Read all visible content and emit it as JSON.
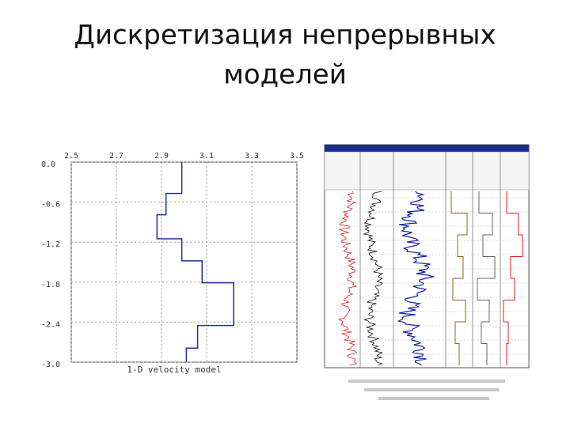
{
  "slide": {
    "title_lines": [
      "Дискретизация непрерывных",
      "моделей"
    ]
  },
  "chart_data": {
    "type": "line",
    "xlabel": "1-D velocity model",
    "xlim": [
      2.5,
      3.5
    ],
    "xticks": [
      2.5,
      2.7,
      2.9,
      3.1,
      3.3,
      3.5
    ],
    "ylim": [
      -3.0,
      0
    ],
    "yticks": [
      {
        "value": 0,
        "label": "0.0"
      },
      -0.6,
      -1.2,
      -1.8,
      -2.4,
      {
        "value": -3.0,
        "label": "-3.0"
      }
    ],
    "grid": true,
    "series": [
      {
        "color": "#1f2fa8",
        "x": [
          2.99,
          2.99,
          2.92,
          2.92,
          2.88,
          2.88,
          2.99,
          2.99,
          3.08,
          3.08,
          3.22,
          3.22,
          3.06,
          3.06,
          3.01,
          3.01
        ],
        "y": [
          0,
          -0.47,
          -0.47,
          -0.79,
          -0.79,
          -1.15,
          -1.15,
          -1.48,
          -1.48,
          -1.81,
          -1.81,
          -2.45,
          -2.45,
          -2.79,
          -2.79,
          -3.0
        ]
      }
    ]
  }
}
